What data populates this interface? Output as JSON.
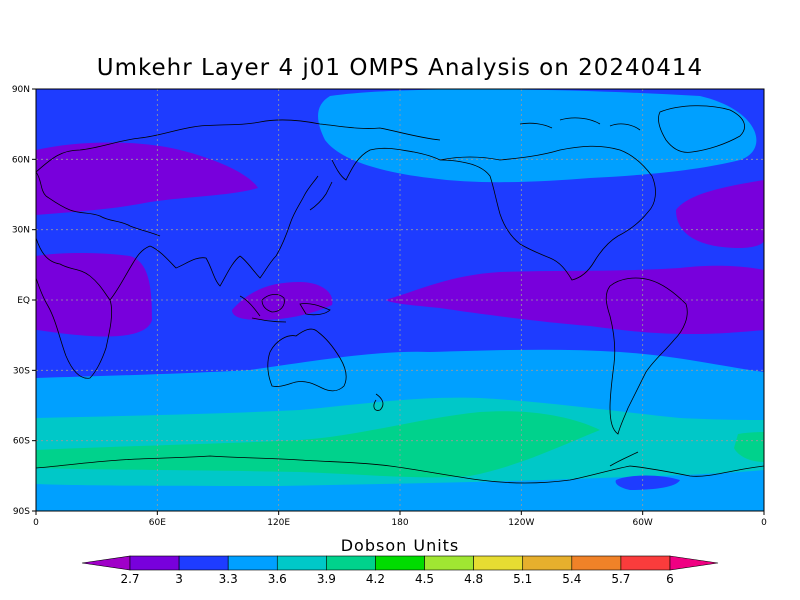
{
  "title": "Umkehr Layer 4 j01 OMPS Analysis on 20240414",
  "map": {
    "lat_ticks": [
      {
        "lat": 90,
        "label": "90N"
      },
      {
        "lat": 60,
        "label": "60N"
      },
      {
        "lat": 30,
        "label": "30N"
      },
      {
        "lat": 0,
        "label": "EQ"
      },
      {
        "lat": -30,
        "label": "30S"
      },
      {
        "lat": -60,
        "label": "60S"
      },
      {
        "lat": -90,
        "label": "90S"
      }
    ],
    "lon_ticks": [
      {
        "lon": 0,
        "label": "0"
      },
      {
        "lon": 60,
        "label": "60E"
      },
      {
        "lon": 120,
        "label": "120E"
      },
      {
        "lon": 180,
        "label": "180"
      },
      {
        "lon": 240,
        "label": "120W"
      },
      {
        "lon": 300,
        "label": "60W"
      },
      {
        "lon": 360,
        "label": "0"
      }
    ],
    "lon_range": [
      0,
      360
    ],
    "lat_range": [
      -90,
      90
    ],
    "grid": true
  },
  "colorbar": {
    "title": "Dobson Units",
    "levels": [
      "2.7",
      "3",
      "3.3",
      "3.6",
      "3.9",
      "4.2",
      "4.5",
      "4.8",
      "5.1",
      "5.4",
      "5.7",
      "6"
    ],
    "colors": [
      "#a000c8",
      "#7800dc",
      "#1e3cff",
      "#00a0ff",
      "#00c8c8",
      "#00d28c",
      "#00dc00",
      "#a0e632",
      "#e6dc32",
      "#e6af2d",
      "#f08228",
      "#fa3c3c",
      "#f00082"
    ]
  }
}
